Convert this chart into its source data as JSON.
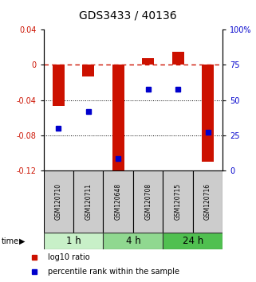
{
  "title": "GDS3433 / 40136",
  "samples": [
    "GSM120710",
    "GSM120711",
    "GSM120648",
    "GSM120708",
    "GSM120715",
    "GSM120716"
  ],
  "groups": [
    {
      "label": "1 h",
      "indices": [
        0,
        1
      ],
      "color": "#c8f0c8"
    },
    {
      "label": "4 h",
      "indices": [
        2,
        3
      ],
      "color": "#90d890"
    },
    {
      "label": "24 h",
      "indices": [
        4,
        5
      ],
      "color": "#50c050"
    }
  ],
  "log10_ratio": [
    -0.047,
    -0.013,
    -0.123,
    0.008,
    0.015,
    -0.11
  ],
  "percentile_rank": [
    30,
    42,
    8.5,
    58,
    58,
    27
  ],
  "ylim_left": [
    -0.12,
    0.04
  ],
  "ylim_right": [
    0,
    100
  ],
  "left_ticks": [
    0.04,
    0.0,
    -0.04,
    -0.08,
    -0.12
  ],
  "left_tick_labels": [
    "0.04",
    "0",
    "-0.04",
    "-0.08",
    "-0.12"
  ],
  "right_ticks": [
    100,
    75,
    50,
    25,
    0
  ],
  "right_tick_labels": [
    "100%",
    "75",
    "50",
    "25",
    "0"
  ],
  "bar_color": "#cc1100",
  "dot_color": "#0000cc",
  "zero_line_color": "#cc1100",
  "grid_color": "#000000",
  "background_color": "#ffffff",
  "title_fontsize": 10,
  "tick_fontsize": 7,
  "label_fontsize": 7,
  "sample_label_fontsize": 5.5,
  "group_label_fontsize": 8.5,
  "sample_box_color": "#cccccc"
}
